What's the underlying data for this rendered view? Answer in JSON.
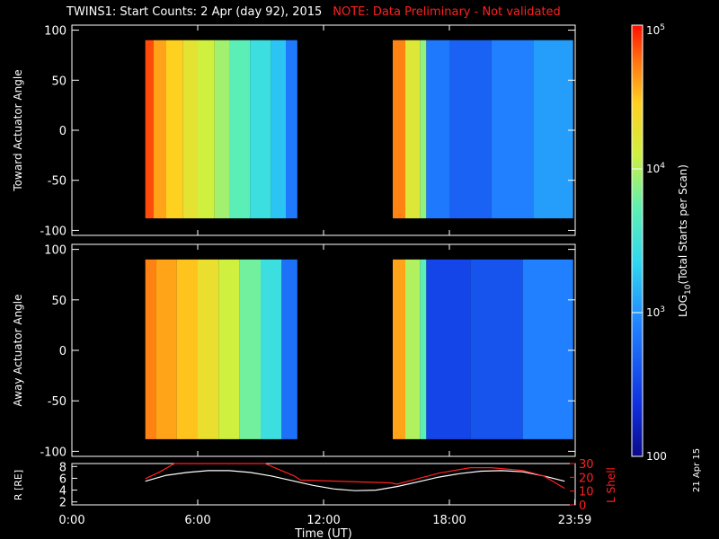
{
  "header": {
    "title": "TWINS1: Start Counts:  2 Apr (day  92), 2015",
    "note": "NOTE: Data Preliminary - Not validated"
  },
  "footer": {
    "run_date": "21 Apr 15"
  },
  "colors": {
    "background": "#000000",
    "axis": "#ffffff",
    "note": "#ff2020",
    "lshell": "#ff2020",
    "r": "#ffffff"
  },
  "chart_data": [
    {
      "type": "heatmap",
      "name": "toward",
      "ylabel": "Toward Actuator Angle",
      "ylim": [
        -105,
        105
      ],
      "yticks": [
        -100,
        -50,
        0,
        50,
        100
      ],
      "xlim": [
        0,
        24
      ],
      "data_blocks": [
        {
          "x_start": 3.5,
          "x_end": 10.75,
          "y_start": -88,
          "y_end": 90,
          "stripes": [
            {
              "x0": 3.5,
              "x1": 3.9,
              "level": 4.85
            },
            {
              "x0": 3.9,
              "x1": 4.5,
              "level": 4.6
            },
            {
              "x0": 4.5,
              "x1": 5.3,
              "level": 4.45
            },
            {
              "x0": 5.3,
              "x1": 6.0,
              "level": 4.25
            },
            {
              "x0": 6.0,
              "x1": 6.8,
              "level": 4.1
            },
            {
              "x0": 6.8,
              "x1": 7.5,
              "level": 3.95
            },
            {
              "x0": 7.5,
              "x1": 8.5,
              "level": 3.7
            },
            {
              "x0": 8.5,
              "x1": 9.5,
              "level": 3.45
            },
            {
              "x0": 9.5,
              "x1": 10.2,
              "level": 3.25
            },
            {
              "x0": 10.2,
              "x1": 10.75,
              "level": 2.85
            }
          ]
        },
        {
          "x_start": 15.3,
          "x_end": 23.9,
          "y_start": -88,
          "y_end": 90,
          "stripes": [
            {
              "x0": 15.3,
              "x1": 15.9,
              "level": 4.7
            },
            {
              "x0": 15.9,
              "x1": 16.6,
              "level": 4.2
            },
            {
              "x0": 16.6,
              "x1": 16.9,
              "level": 3.9
            },
            {
              "x0": 16.9,
              "x1": 18.0,
              "level": 2.85
            },
            {
              "x0": 18.0,
              "x1": 20.0,
              "level": 2.7
            },
            {
              "x0": 20.0,
              "x1": 22.0,
              "level": 2.9
            },
            {
              "x0": 22.0,
              "x1": 23.9,
              "level": 3.05
            }
          ]
        }
      ]
    },
    {
      "type": "heatmap",
      "name": "away",
      "ylabel": "Away Actuator Angle",
      "ylim": [
        -105,
        105
      ],
      "yticks": [
        -100,
        -50,
        0,
        50,
        100
      ],
      "xlim": [
        0,
        24
      ],
      "data_blocks": [
        {
          "x_start": 3.5,
          "x_end": 10.75,
          "y_start": -88,
          "y_end": 90,
          "stripes": [
            {
              "x0": 3.5,
              "x1": 4.0,
              "level": 4.7
            },
            {
              "x0": 4.0,
              "x1": 5.0,
              "level": 4.6
            },
            {
              "x0": 5.0,
              "x1": 6.0,
              "level": 4.5
            },
            {
              "x0": 6.0,
              "x1": 7.0,
              "level": 4.3
            },
            {
              "x0": 7.0,
              "x1": 8.0,
              "level": 4.1
            },
            {
              "x0": 8.0,
              "x1": 9.0,
              "level": 3.8
            },
            {
              "x0": 9.0,
              "x1": 10.0,
              "level": 3.45
            },
            {
              "x0": 10.0,
              "x1": 10.75,
              "level": 2.8
            }
          ]
        },
        {
          "x_start": 15.3,
          "x_end": 23.9,
          "y_start": -88,
          "y_end": 90,
          "stripes": [
            {
              "x0": 15.3,
              "x1": 15.9,
              "level": 4.6
            },
            {
              "x0": 15.9,
              "x1": 16.6,
              "level": 4.0
            },
            {
              "x0": 16.6,
              "x1": 16.9,
              "level": 3.7
            },
            {
              "x0": 16.9,
              "x1": 19.0,
              "level": 2.5
            },
            {
              "x0": 19.0,
              "x1": 21.5,
              "level": 2.6
            },
            {
              "x0": 21.5,
              "x1": 23.9,
              "level": 2.9
            }
          ]
        }
      ]
    },
    {
      "type": "line",
      "name": "orbit",
      "xlabel": "Time (UT)",
      "xlim": [
        0,
        24
      ],
      "xtick_labels": [
        "0:00",
        "6:00",
        "12:00",
        "18:00",
        "23:59"
      ],
      "xtick_values": [
        0,
        6,
        12,
        18,
        23.98
      ],
      "left_axis": {
        "label": "R [RE]",
        "ylim": [
          1.5,
          8.5
        ],
        "yticks": [
          2,
          4,
          6,
          8
        ]
      },
      "right_axis": {
        "label": "L Shell",
        "ylim": [
          0,
          30
        ],
        "yticks": [
          0,
          10,
          20,
          30
        ]
      },
      "series": [
        {
          "name": "R [RE]",
          "axis": "left",
          "x": [
            3.5,
            4.5,
            5.5,
            6.5,
            7.5,
            8.5,
            9.5,
            10.5,
            11.5,
            12.5,
            13.5,
            14.5,
            15.5,
            16.5,
            17.5,
            18.5,
            19.5,
            20.5,
            21.5,
            22.5,
            23.5
          ],
          "values": [
            5.5,
            6.5,
            7.0,
            7.3,
            7.3,
            7.0,
            6.4,
            5.6,
            4.8,
            4.2,
            3.9,
            4.0,
            4.6,
            5.4,
            6.2,
            6.8,
            7.2,
            7.3,
            7.1,
            6.4,
            5.5
          ]
        },
        {
          "name": "L Shell",
          "axis": "right",
          "x": [
            3.5,
            4.2,
            4.9,
            5.2,
            8.9,
            9.2,
            10.6,
            10.9,
            15.2,
            15.5,
            17.5,
            19.0,
            20.0,
            21.5,
            22.5,
            23.5
          ],
          "values": [
            19,
            24,
            30,
            31,
            31,
            30,
            21,
            18,
            16,
            15,
            23,
            27,
            27,
            25,
            21,
            12
          ]
        }
      ]
    }
  ],
  "colorbar": {
    "label": "LOG10(Total Starts per Scan)",
    "label_main": "LOG",
    "label_sub": "10",
    "label_rest": "(Total Starts per Scan)",
    "log_range": [
      2,
      5
    ],
    "ticks": [
      {
        "label": "100",
        "log": 2
      },
      {
        "label": "10",
        "sup": "3",
        "log": 3
      },
      {
        "label": "10",
        "sup": "4",
        "log": 4
      },
      {
        "label": "10",
        "sup": "5",
        "log": 5
      }
    ]
  }
}
